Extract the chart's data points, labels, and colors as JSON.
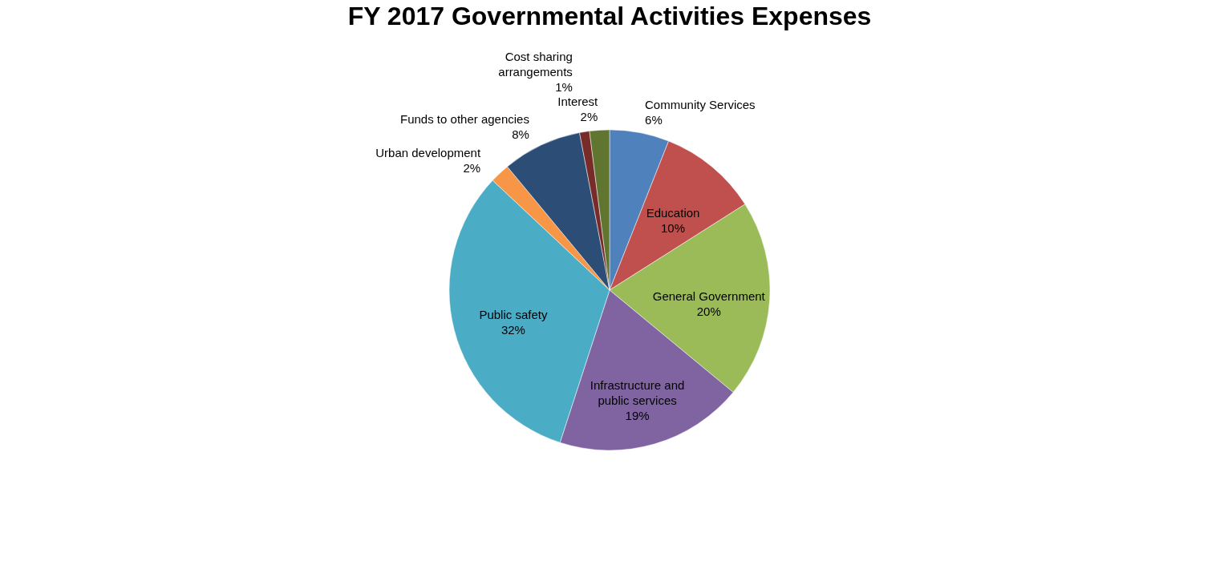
{
  "chart_data": {
    "type": "pie",
    "title": "FY 2017 Governmental Activities Expenses",
    "categories": [
      "Community Services",
      "Education",
      "General Government",
      "Infrastructure and public services",
      "Public safety",
      "Urban development",
      "Funds to other agencies",
      "Cost sharing arrangements",
      "Interest"
    ],
    "values": [
      6,
      10,
      20,
      19,
      32,
      2,
      8,
      1,
      2
    ],
    "colors": [
      "#4f81bd",
      "#c0504d",
      "#9bbb59",
      "#8064a2",
      "#4bacc6",
      "#f79646",
      "#2c4d75",
      "#772c2a",
      "#5f7530"
    ],
    "value_labels": [
      "6%",
      "10%",
      "20%",
      "19%",
      "32%",
      "2%",
      "8%",
      "1%",
      "2%"
    ],
    "legend": false
  }
}
